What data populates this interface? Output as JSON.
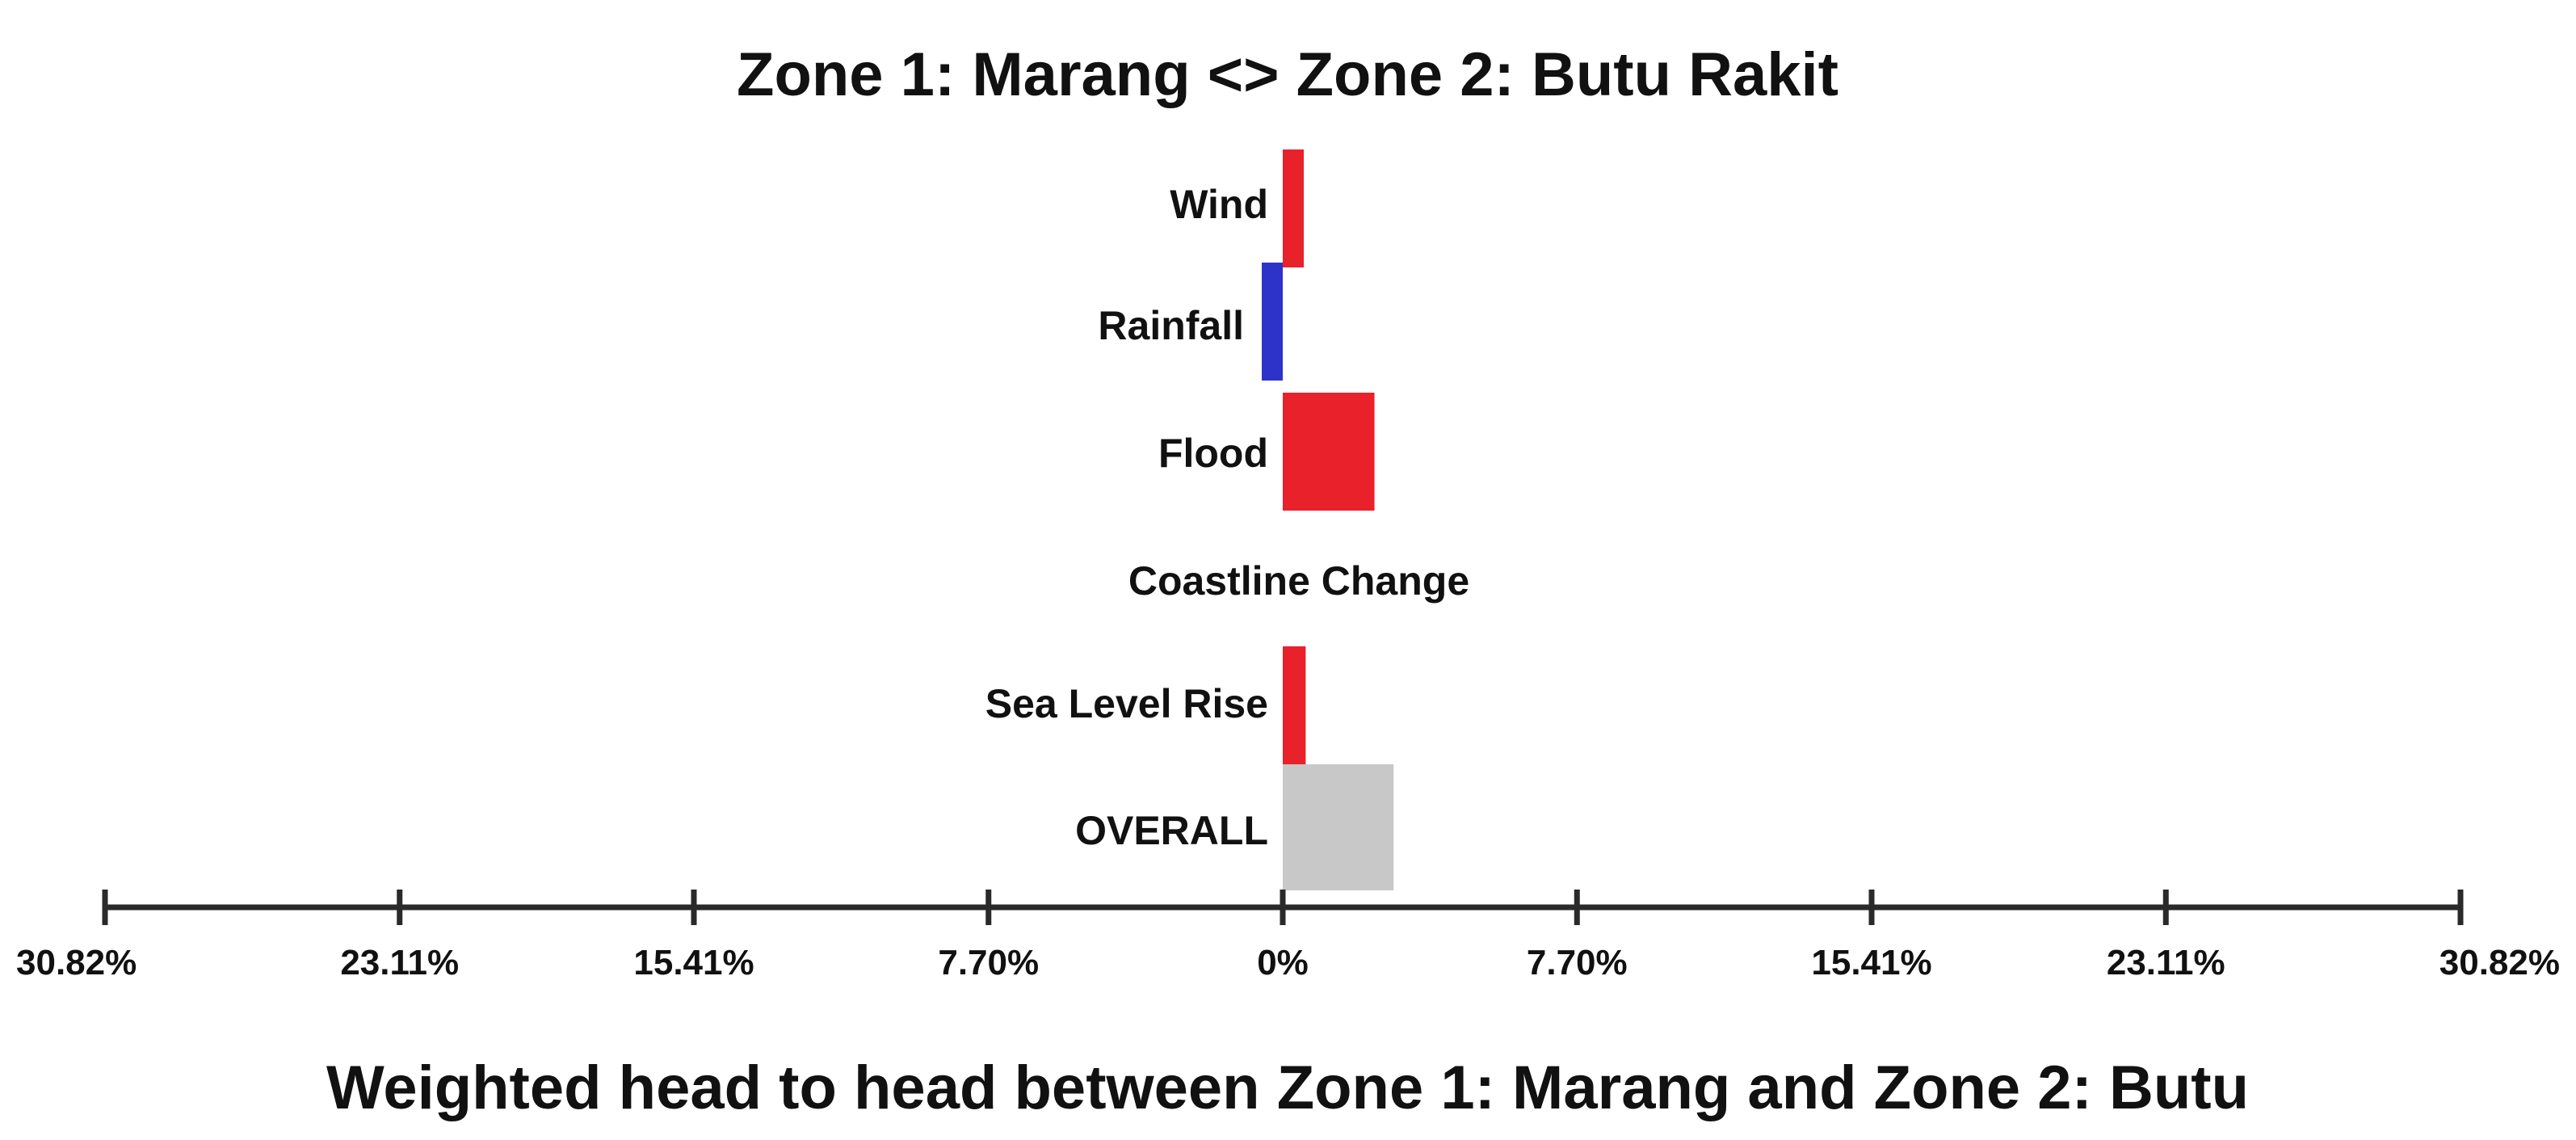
{
  "chart_data": {
    "type": "bar",
    "orientation": "horizontal-diverging",
    "title": "Zone 1: Marang <> Zone 2: Butu Rakit",
    "xlabel": "Weighted head to head between Zone 1: Marang and Zone 2: Butu",
    "ylabel": "",
    "xlim": [
      -30.82,
      30.82
    ],
    "ticks": [
      -30.82,
      -23.11,
      -15.41,
      -7.7,
      0,
      7.7,
      15.41,
      23.11,
      30.82
    ],
    "tick_labels": [
      "30.82%",
      "23.11%",
      "15.41%",
      "7.70%",
      "0%",
      "7.70%",
      "15.41%",
      "23.11%",
      "30.82%"
    ],
    "categories": [
      "Wind",
      "Rainfall",
      "Flood",
      "Coastline Change",
      "Sea Level Rise",
      "OVERALL"
    ],
    "values": [
      0.5,
      -0.4,
      2.4,
      0,
      0.6,
      2.9
    ],
    "colors": {
      "positive": "#e8212b",
      "negative": "#2d32c8",
      "overall": "#c8c8c8"
    },
    "grid": false,
    "legend": "none"
  }
}
